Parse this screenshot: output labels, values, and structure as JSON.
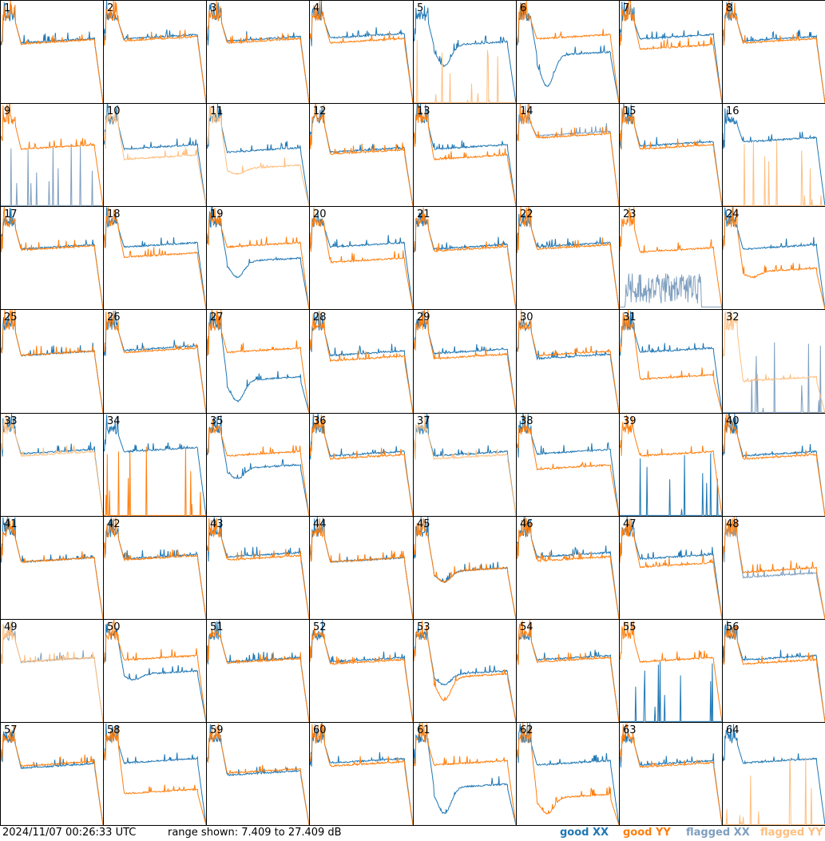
{
  "footer": {
    "timestamp": "2024/11/07 00:26:33 UTC",
    "range": "range shown: 7.409 to 27.409 dB"
  },
  "legend": [
    {
      "label": "good XX",
      "color": "#1f77b4"
    },
    {
      "label": "good YY",
      "color": "#ff7f0e"
    },
    {
      "label": "flagged XX",
      "color": "#7f9fbf"
    },
    {
      "label": "flagged YY",
      "color": "#ffbf7f"
    }
  ],
  "chart_data": {
    "type": "line",
    "rows": 8,
    "cols": 8,
    "ylim": [
      7.409,
      27.409
    ],
    "yunit": "dB",
    "panels": [
      {
        "label": "1",
        "xx": {
          "flag": false,
          "lvl": 0.58
        },
        "yy": {
          "flag": false,
          "lvl": 0.57
        }
      },
      {
        "label": "2",
        "xx": {
          "flag": false,
          "lvl": 0.62
        },
        "yy": {
          "flag": false,
          "lvl": 0.6
        }
      },
      {
        "label": "3",
        "xx": {
          "flag": false,
          "lvl": 0.6
        },
        "yy": {
          "flag": false,
          "lvl": 0.58
        }
      },
      {
        "label": "4",
        "xx": {
          "flag": false,
          "lvl": 0.63
        },
        "yy": {
          "flag": false,
          "lvl": 0.58
        }
      },
      {
        "label": "5",
        "xx": {
          "flag": false,
          "lvl": 0.55,
          "dip": 0.35
        },
        "yy": {
          "flag": true,
          "dead": true
        }
      },
      {
        "label": "6",
        "xx": {
          "flag": false,
          "lvl": 0.45,
          "dip": 0.15
        },
        "yy": {
          "flag": false,
          "lvl": 0.62
        }
      },
      {
        "label": "7",
        "xx": {
          "flag": false,
          "lvl": 0.62
        },
        "yy": {
          "flag": false,
          "lvl": 0.52
        }
      },
      {
        "label": "8",
        "xx": {
          "flag": false,
          "lvl": 0.6
        },
        "yy": {
          "flag": false,
          "lvl": 0.58
        }
      },
      {
        "label": "9",
        "xx": {
          "flag": true,
          "dead": true
        },
        "yy": {
          "flag": false,
          "lvl": 0.55
        }
      },
      {
        "label": "10",
        "xx": {
          "flag": false,
          "lvl": 0.55
        },
        "yy": {
          "flag": true,
          "lvl": 0.45
        }
      },
      {
        "label": "11",
        "xx": {
          "flag": false,
          "lvl": 0.52
        },
        "yy": {
          "flag": true,
          "lvl": 0.35,
          "dip": 0.3
        }
      },
      {
        "label": "12",
        "xx": {
          "flag": false,
          "lvl": 0.52
        },
        "yy": {
          "flag": false,
          "lvl": 0.5
        }
      },
      {
        "label": "13",
        "xx": {
          "flag": false,
          "lvl": 0.55
        },
        "yy": {
          "flag": false,
          "lvl": 0.45
        }
      },
      {
        "label": "14",
        "xx": {
          "flag": true,
          "lvl": 0.68
        },
        "yy": {
          "flag": false,
          "lvl": 0.66
        }
      },
      {
        "label": "15",
        "xx": {
          "flag": false,
          "lvl": 0.58
        },
        "yy": {
          "flag": false,
          "lvl": 0.55
        }
      },
      {
        "label": "16",
        "xx": {
          "flag": false,
          "lvl": 0.62
        },
        "yy": {
          "flag": true,
          "dead": true
        }
      },
      {
        "label": "17",
        "xx": {
          "flag": false,
          "lvl": 0.58
        },
        "yy": {
          "flag": false,
          "lvl": 0.57
        }
      },
      {
        "label": "18",
        "xx": {
          "flag": false,
          "lvl": 0.6
        },
        "yy": {
          "flag": false,
          "lvl": 0.5
        }
      },
      {
        "label": "19",
        "xx": {
          "flag": false,
          "lvl": 0.45,
          "dip": 0.3
        },
        "yy": {
          "flag": false,
          "lvl": 0.6
        }
      },
      {
        "label": "20",
        "xx": {
          "flag": false,
          "lvl": 0.6
        },
        "yy": {
          "flag": false,
          "lvl": 0.45
        }
      },
      {
        "label": "21",
        "xx": {
          "flag": false,
          "lvl": 0.58
        },
        "yy": {
          "flag": false,
          "lvl": 0.56
        }
      },
      {
        "label": "22",
        "xx": {
          "flag": false,
          "lvl": 0.6
        },
        "yy": {
          "flag": false,
          "lvl": 0.58
        }
      },
      {
        "label": "23",
        "xx": {
          "flag": true,
          "lvl": 0.3,
          "noisy": true
        },
        "yy": {
          "flag": false,
          "lvl": 0.55
        }
      },
      {
        "label": "24",
        "xx": {
          "flag": false,
          "lvl": 0.58
        },
        "yy": {
          "flag": false,
          "lvl": 0.35,
          "dip": 0.3
        }
      },
      {
        "label": "25",
        "xx": {
          "flag": false,
          "lvl": 0.55
        },
        "yy": {
          "flag": false,
          "lvl": 0.55
        }
      },
      {
        "label": "26",
        "xx": {
          "flag": false,
          "lvl": 0.6
        },
        "yy": {
          "flag": false,
          "lvl": 0.58
        }
      },
      {
        "label": "27",
        "xx": {
          "flag": false,
          "lvl": 0.3,
          "dip": 0.1
        },
        "yy": {
          "flag": false,
          "lvl": 0.58
        }
      },
      {
        "label": "28",
        "xx": {
          "flag": false,
          "lvl": 0.55
        },
        "yy": {
          "flag": false,
          "lvl": 0.5
        }
      },
      {
        "label": "29",
        "xx": {
          "flag": false,
          "lvl": 0.57
        },
        "yy": {
          "flag": false,
          "lvl": 0.52
        }
      },
      {
        "label": "30",
        "xx": {
          "flag": false,
          "lvl": 0.52
        },
        "yy": {
          "flag": false,
          "lvl": 0.55
        }
      },
      {
        "label": "31",
        "xx": {
          "flag": false,
          "lvl": 0.58
        },
        "yy": {
          "flag": false,
          "lvl": 0.32
        }
      },
      {
        "label": "32",
        "xx": {
          "flag": true,
          "dead": true
        },
        "yy": {
          "flag": true,
          "lvl": 0.3
        }
      },
      {
        "label": "33",
        "xx": {
          "flag": false,
          "lvl": 0.6
        },
        "yy": {
          "flag": true,
          "lvl": 0.58
        }
      },
      {
        "label": "34",
        "xx": {
          "flag": false,
          "lvl": 0.62
        },
        "yy": {
          "flag": false,
          "dead": true
        }
      },
      {
        "label": "35",
        "xx": {
          "flag": false,
          "lvl": 0.45,
          "dip": 0.35
        },
        "yy": {
          "flag": false,
          "lvl": 0.58
        }
      },
      {
        "label": "36",
        "xx": {
          "flag": false,
          "lvl": 0.58
        },
        "yy": {
          "flag": false,
          "lvl": 0.55
        }
      },
      {
        "label": "37",
        "xx": {
          "flag": false,
          "lvl": 0.58
        },
        "yy": {
          "flag": true,
          "lvl": 0.55
        }
      },
      {
        "label": "38",
        "xx": {
          "flag": false,
          "lvl": 0.6
        },
        "yy": {
          "flag": false,
          "lvl": 0.45
        }
      },
      {
        "label": "39",
        "xx": {
          "flag": false,
          "dead": true
        },
        "yy": {
          "flag": false,
          "lvl": 0.58
        }
      },
      {
        "label": "40",
        "xx": {
          "flag": false,
          "lvl": 0.58
        },
        "yy": {
          "flag": false,
          "lvl": 0.55
        }
      },
      {
        "label": "41",
        "xx": {
          "flag": false,
          "lvl": 0.55
        },
        "yy": {
          "flag": false,
          "lvl": 0.55
        }
      },
      {
        "label": "42",
        "xx": {
          "flag": false,
          "lvl": 0.58
        },
        "yy": {
          "flag": false,
          "lvl": 0.57
        }
      },
      {
        "label": "43",
        "xx": {
          "flag": false,
          "lvl": 0.6
        },
        "yy": {
          "flag": false,
          "lvl": 0.57
        }
      },
      {
        "label": "44",
        "xx": {
          "flag": false,
          "lvl": 0.55
        },
        "yy": {
          "flag": false,
          "lvl": 0.55
        }
      },
      {
        "label": "45",
        "xx": {
          "flag": false,
          "lvl": 0.45,
          "dip": 0.35
        },
        "yy": {
          "flag": false,
          "lvl": 0.45,
          "dip": 0.35
        }
      },
      {
        "label": "46",
        "xx": {
          "flag": false,
          "lvl": 0.6
        },
        "yy": {
          "flag": false,
          "lvl": 0.56
        }
      },
      {
        "label": "47",
        "xx": {
          "flag": false,
          "lvl": 0.58
        },
        "yy": {
          "flag": false,
          "lvl": 0.5
        }
      },
      {
        "label": "48",
        "xx": {
          "flag": true,
          "lvl": 0.4
        },
        "yy": {
          "flag": false,
          "lvl": 0.45
        }
      },
      {
        "label": "49",
        "xx": {
          "flag": true,
          "lvl": 0.58
        },
        "yy": {
          "flag": true,
          "lvl": 0.58
        }
      },
      {
        "label": "50",
        "xx": {
          "flag": false,
          "lvl": 0.45,
          "dip": 0.4
        },
        "yy": {
          "flag": false,
          "lvl": 0.6
        }
      },
      {
        "label": "51",
        "xx": {
          "flag": false,
          "lvl": 0.58
        },
        "yy": {
          "flag": false,
          "lvl": 0.57
        }
      },
      {
        "label": "52",
        "xx": {
          "flag": false,
          "lvl": 0.58
        },
        "yy": {
          "flag": false,
          "lvl": 0.56
        }
      },
      {
        "label": "53",
        "xx": {
          "flag": false,
          "lvl": 0.45,
          "dip": 0.35
        },
        "yy": {
          "flag": false,
          "lvl": 0.42,
          "dip": 0.2
        }
      },
      {
        "label": "54",
        "xx": {
          "flag": false,
          "lvl": 0.6
        },
        "yy": {
          "flag": false,
          "lvl": 0.58
        }
      },
      {
        "label": "55",
        "xx": {
          "flag": false,
          "dead": true
        },
        "yy": {
          "flag": false,
          "lvl": 0.58
        }
      },
      {
        "label": "56",
        "xx": {
          "flag": false,
          "lvl": 0.6
        },
        "yy": {
          "flag": false,
          "lvl": 0.56
        }
      },
      {
        "label": "57",
        "xx": {
          "flag": false,
          "lvl": 0.55
        },
        "yy": {
          "flag": false,
          "lvl": 0.57
        }
      },
      {
        "label": "58",
        "xx": {
          "flag": false,
          "lvl": 0.6
        },
        "yy": {
          "flag": false,
          "lvl": 0.3
        }
      },
      {
        "label": "59",
        "xx": {
          "flag": false,
          "lvl": 0.48
        },
        "yy": {
          "flag": false,
          "lvl": 0.5
        }
      },
      {
        "label": "60",
        "xx": {
          "flag": false,
          "lvl": 0.6
        },
        "yy": {
          "flag": false,
          "lvl": 0.57
        }
      },
      {
        "label": "61",
        "xx": {
          "flag": false,
          "lvl": 0.35,
          "dip": 0.1
        },
        "yy": {
          "flag": false,
          "lvl": 0.58
        }
      },
      {
        "label": "62",
        "xx": {
          "flag": false,
          "lvl": 0.58
        },
        "yy": {
          "flag": false,
          "lvl": 0.25,
          "dip": 0.1
        }
      },
      {
        "label": "63",
        "xx": {
          "flag": false,
          "lvl": 0.58
        },
        "yy": {
          "flag": false,
          "lvl": 0.56
        }
      },
      {
        "label": "64",
        "xx": {
          "flag": false,
          "lvl": 0.6
        },
        "yy": {
          "flag": true,
          "dead": true
        }
      }
    ]
  }
}
